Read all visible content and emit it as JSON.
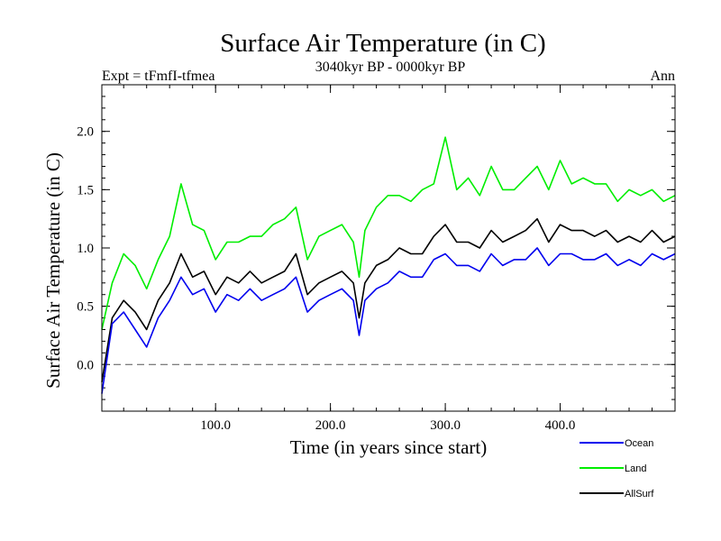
{
  "chart_data": {
    "type": "line",
    "title": "Surface Air Temperature (in C)",
    "subtitle": "3040kyr BP - 0000kyr BP",
    "experiment_label": "Expt = tFmfI-tfmea",
    "season_label": "Ann",
    "xlabel": "Time (in years since start)",
    "ylabel": "Surface Air Temperature (in C)",
    "xlim": [
      1,
      500
    ],
    "ylim": [
      -0.4,
      2.4
    ],
    "x_ticks": [
      100,
      200,
      300,
      400
    ],
    "x_tick_labels": [
      "100.0",
      "200.0",
      "300.0",
      "400.0"
    ],
    "y_ticks": [
      0.0,
      0.5,
      1.0,
      1.5,
      2.0
    ],
    "y_tick_labels": [
      "0.0",
      "0.5",
      "1.0",
      "1.5",
      "2.0"
    ],
    "reference_line": {
      "y": 0.0,
      "style": "dashed"
    },
    "x": [
      1,
      10,
      20,
      30,
      40,
      50,
      60,
      70,
      80,
      90,
      100,
      110,
      120,
      130,
      140,
      150,
      160,
      170,
      180,
      190,
      200,
      210,
      220,
      225,
      230,
      240,
      250,
      260,
      270,
      280,
      290,
      300,
      310,
      320,
      330,
      340,
      350,
      360,
      370,
      380,
      390,
      400,
      410,
      420,
      430,
      440,
      450,
      460,
      470,
      480,
      490,
      500
    ],
    "series": [
      {
        "name": "Ocean",
        "color": "#0000ee",
        "values": [
          -0.25,
          0.35,
          0.45,
          0.3,
          0.15,
          0.4,
          0.55,
          0.75,
          0.6,
          0.65,
          0.45,
          0.6,
          0.55,
          0.65,
          0.55,
          0.6,
          0.65,
          0.75,
          0.45,
          0.55,
          0.6,
          0.65,
          0.55,
          0.25,
          0.55,
          0.65,
          0.7,
          0.8,
          0.75,
          0.75,
          0.9,
          0.95,
          0.85,
          0.85,
          0.8,
          0.95,
          0.85,
          0.9,
          0.9,
          1.0,
          0.85,
          0.95,
          0.95,
          0.9,
          0.9,
          0.95,
          0.85,
          0.9,
          0.85,
          0.95,
          0.9,
          0.95
        ]
      },
      {
        "name": "Land",
        "color": "#00ee00",
        "values": [
          0.3,
          0.7,
          0.95,
          0.85,
          0.65,
          0.9,
          1.1,
          1.55,
          1.2,
          1.15,
          0.9,
          1.05,
          1.05,
          1.1,
          1.1,
          1.2,
          1.25,
          1.35,
          0.9,
          1.1,
          1.15,
          1.2,
          1.05,
          0.75,
          1.15,
          1.35,
          1.45,
          1.45,
          1.4,
          1.5,
          1.55,
          1.95,
          1.5,
          1.6,
          1.45,
          1.7,
          1.5,
          1.5,
          1.6,
          1.7,
          1.5,
          1.75,
          1.55,
          1.6,
          1.55,
          1.55,
          1.4,
          1.5,
          1.45,
          1.5,
          1.4,
          1.45
        ]
      },
      {
        "name": "AllSurf",
        "color": "#000000",
        "values": [
          -0.15,
          0.4,
          0.55,
          0.45,
          0.3,
          0.55,
          0.7,
          0.95,
          0.75,
          0.8,
          0.6,
          0.75,
          0.7,
          0.8,
          0.7,
          0.75,
          0.8,
          0.95,
          0.6,
          0.7,
          0.75,
          0.8,
          0.7,
          0.4,
          0.7,
          0.85,
          0.9,
          1.0,
          0.95,
          0.95,
          1.1,
          1.2,
          1.05,
          1.05,
          1.0,
          1.15,
          1.05,
          1.1,
          1.15,
          1.25,
          1.05,
          1.2,
          1.15,
          1.15,
          1.1,
          1.15,
          1.05,
          1.1,
          1.05,
          1.15,
          1.05,
          1.1
        ]
      }
    ],
    "legend_position": "bottom-right"
  }
}
